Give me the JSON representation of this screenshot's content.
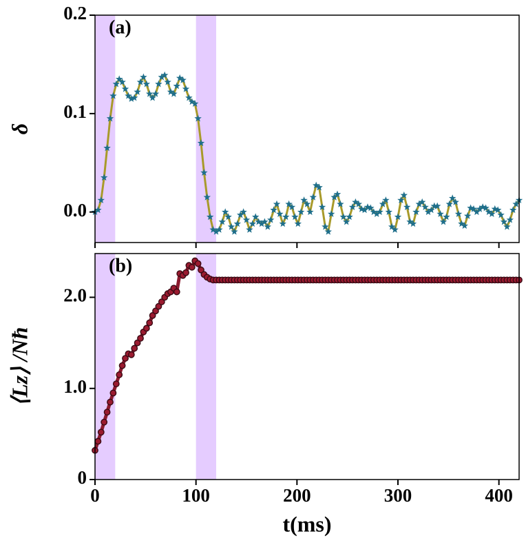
{
  "chart_data": [
    {
      "type": "line",
      "annotation": "(a)",
      "ylabel": "δ",
      "marker": "star",
      "color": "#a89a2a",
      "marker_color": "#1f6f8b",
      "xlim": [
        0,
        420
      ],
      "xticks": [
        0,
        100,
        200,
        300,
        400
      ],
      "xtick_labels": false,
      "ylim": [
        -0.031,
        0.2
      ],
      "yticks": [
        {
          "value": 0,
          "label": "0.0"
        },
        0.1,
        0.2
      ],
      "shaded_spans": [
        [
          0,
          20
        ],
        [
          100,
          120
        ]
      ],
      "span_color": "#e5ccff",
      "x": [
        0,
        3,
        6,
        9,
        12,
        15,
        18,
        21,
        24,
        27,
        30,
        33,
        36,
        39,
        42,
        45,
        48,
        51,
        54,
        57,
        60,
        63,
        66,
        69,
        72,
        75,
        78,
        81,
        84,
        87,
        90,
        93,
        96,
        99,
        102,
        105,
        108,
        111,
        114,
        117,
        120,
        123,
        126,
        129,
        132,
        135,
        138,
        141,
        144,
        147,
        150,
        153,
        156,
        159,
        162,
        165,
        168,
        171,
        174,
        177,
        180,
        183,
        186,
        189,
        192,
        195,
        198,
        201,
        204,
        207,
        210,
        213,
        216,
        219,
        222,
        225,
        228,
        231,
        234,
        237,
        240,
        243,
        246,
        249,
        252,
        255,
        258,
        261,
        264,
        267,
        270,
        273,
        276,
        279,
        282,
        285,
        288,
        291,
        294,
        297,
        300,
        303,
        306,
        309,
        312,
        315,
        318,
        321,
        324,
        327,
        330,
        333,
        336,
        339,
        342,
        345,
        348,
        351,
        354,
        357,
        360,
        363,
        366,
        369,
        372,
        375,
        378,
        381,
        384,
        387,
        390,
        393,
        396,
        399,
        402,
        405,
        408,
        411,
        414,
        417,
        420
      ],
      "values": [
        0.0,
        0.002,
        0.012,
        0.035,
        0.065,
        0.095,
        0.118,
        0.13,
        0.135,
        0.132,
        0.125,
        0.118,
        0.115,
        0.116,
        0.122,
        0.132,
        0.137,
        0.13,
        0.12,
        0.116,
        0.12,
        0.13,
        0.137,
        0.139,
        0.132,
        0.122,
        0.12,
        0.128,
        0.136,
        0.134,
        0.125,
        0.116,
        0.112,
        0.11,
        0.095,
        0.07,
        0.04,
        0.015,
        -0.005,
        -0.018,
        -0.02,
        -0.018,
        -0.01,
        0.0,
        -0.005,
        -0.015,
        -0.02,
        -0.012,
        -0.003,
        0.0,
        -0.008,
        -0.018,
        -0.012,
        -0.005,
        -0.01,
        -0.012,
        -0.01,
        -0.015,
        -0.008,
        0.002,
        0.008,
        -0.002,
        -0.012,
        -0.005,
        0.008,
        0.005,
        -0.005,
        -0.012,
        0.0,
        0.012,
        0.008,
        0.0,
        0.015,
        0.027,
        0.025,
        0.005,
        -0.015,
        -0.02,
        -0.002,
        0.015,
        0.018,
        0.008,
        -0.005,
        -0.01,
        -0.005,
        0.005,
        0.01,
        0.008,
        0.003,
        0.002,
        0.005,
        0.004,
        0.0,
        -0.002,
        0.0,
        0.008,
        0.012,
        0.0,
        -0.015,
        -0.018,
        -0.005,
        0.012,
        0.017,
        0.005,
        -0.01,
        -0.012,
        0.0,
        0.008,
        0.01,
        0.005,
        0.0,
        0.002,
        0.006,
        0.006,
        -0.002,
        -0.01,
        -0.005,
        0.008,
        0.014,
        0.01,
        -0.002,
        -0.012,
        -0.014,
        -0.004,
        0.004,
        0.003,
        0.0,
        0.003,
        0.005,
        0.004,
        0.0,
        -0.002,
        0.003,
        0.002,
        -0.003,
        -0.01,
        -0.015,
        -0.008,
        0.002,
        0.008,
        0.012
      ]
    },
    {
      "type": "line",
      "annotation": "(b)",
      "ylabel": "⟨Lz⟩ /Nħ",
      "xlabel": "t(ms)",
      "marker": "circle",
      "color": "#8b1a2e",
      "marker_color": "#9b1b30",
      "xlim": [
        0,
        420
      ],
      "xticks": [
        0,
        100,
        200,
        300,
        400
      ],
      "xtick_labels": true,
      "ylim": [
        0,
        2.48
      ],
      "yticks": [
        0,
        {
          "value": 1,
          "label": "1.0"
        },
        {
          "value": 2,
          "label": "2.0"
        }
      ],
      "shaded_spans": [
        [
          0,
          20
        ],
        [
          100,
          120
        ]
      ],
      "span_color": "#e5ccff",
      "x": [
        0,
        3,
        6,
        9,
        12,
        15,
        18,
        21,
        24,
        27,
        30,
        33,
        36,
        39,
        42,
        45,
        48,
        51,
        54,
        57,
        60,
        63,
        66,
        69,
        72,
        75,
        78,
        81,
        84,
        87,
        90,
        93,
        96,
        99,
        102,
        105,
        108,
        111,
        114,
        117,
        120,
        123,
        126,
        129,
        132,
        135,
        138,
        141,
        144,
        147,
        150,
        153,
        156,
        159,
        162,
        165,
        168,
        171,
        174,
        177,
        180,
        183,
        186,
        189,
        192,
        195,
        198,
        201,
        204,
        207,
        210,
        213,
        216,
        219,
        222,
        225,
        228,
        231,
        234,
        237,
        240,
        243,
        246,
        249,
        252,
        255,
        258,
        261,
        264,
        267,
        270,
        273,
        276,
        279,
        282,
        285,
        288,
        291,
        294,
        297,
        300,
        303,
        306,
        309,
        312,
        315,
        318,
        321,
        324,
        327,
        330,
        333,
        336,
        339,
        342,
        345,
        348,
        351,
        354,
        357,
        360,
        363,
        366,
        369,
        372,
        375,
        378,
        381,
        384,
        387,
        390,
        393,
        396,
        399,
        402,
        405,
        408,
        411,
        414,
        417,
        420
      ],
      "values": [
        0.32,
        0.42,
        0.52,
        0.63,
        0.74,
        0.85,
        0.95,
        1.05,
        1.15,
        1.25,
        1.33,
        1.38,
        1.37,
        1.44,
        1.5,
        1.55,
        1.62,
        1.66,
        1.72,
        1.8,
        1.85,
        1.9,
        1.95,
        2.0,
        2.04,
        2.06,
        2.1,
        2.06,
        2.26,
        2.24,
        2.27,
        2.35,
        2.33,
        2.4,
        2.37,
        2.3,
        2.25,
        2.22,
        2.2,
        2.19,
        2.19,
        2.19,
        2.19,
        2.19,
        2.19,
        2.19,
        2.19,
        2.19,
        2.19,
        2.19,
        2.19,
        2.19,
        2.19,
        2.19,
        2.19,
        2.19,
        2.19,
        2.19,
        2.19,
        2.19,
        2.19,
        2.19,
        2.19,
        2.19,
        2.19,
        2.19,
        2.19,
        2.19,
        2.19,
        2.19,
        2.19,
        2.19,
        2.19,
        2.19,
        2.19,
        2.19,
        2.19,
        2.19,
        2.19,
        2.19,
        2.19,
        2.19,
        2.19,
        2.19,
        2.19,
        2.19,
        2.19,
        2.19,
        2.19,
        2.19,
        2.19,
        2.19,
        2.19,
        2.19,
        2.19,
        2.19,
        2.19,
        2.19,
        2.19,
        2.19,
        2.19,
        2.19,
        2.19,
        2.19,
        2.19,
        2.19,
        2.19,
        2.19,
        2.19,
        2.19,
        2.19,
        2.19,
        2.19,
        2.19,
        2.19,
        2.19,
        2.19,
        2.19,
        2.19,
        2.19,
        2.19,
        2.19,
        2.19,
        2.19,
        2.19,
        2.19,
        2.19,
        2.19,
        2.19,
        2.19,
        2.19,
        2.19,
        2.19,
        2.19,
        2.19,
        2.19,
        2.19,
        2.19,
        2.19,
        2.19,
        2.19
      ]
    }
  ]
}
